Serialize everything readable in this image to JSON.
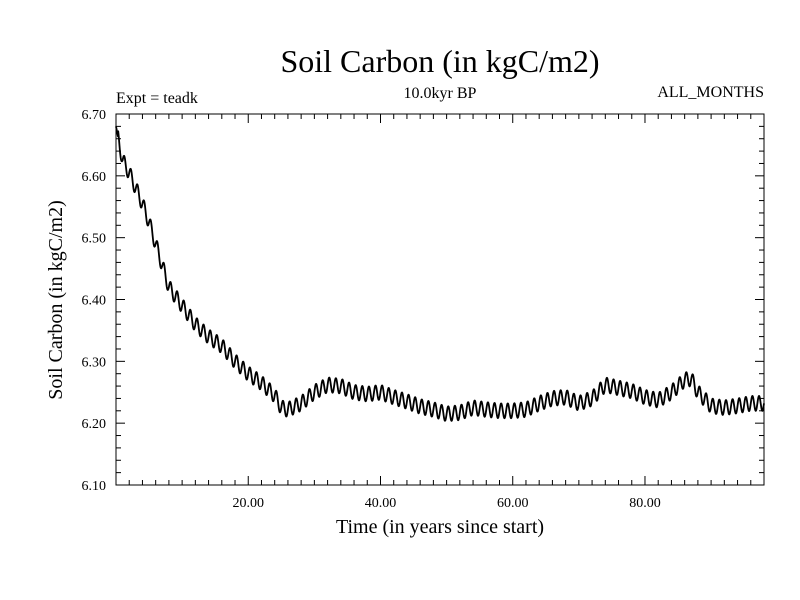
{
  "chart_data": {
    "type": "line",
    "title": "Soil Carbon (in kgC/m2)",
    "subtitle": "10.0kyr BP",
    "left_note": "Expt = teadk",
    "right_note": "ALL_MONTHS",
    "xlabel": "Time (in years since start)",
    "ylabel": "Soil Carbon (in kgC/m2)",
    "xlim": [
      0,
      98
    ],
    "ylim": [
      6.1,
      6.7
    ],
    "x_ticks": [
      20,
      40,
      60,
      80
    ],
    "x_tick_labels": [
      "20.00",
      "40.00",
      "60.00",
      "80.00"
    ],
    "y_ticks": [
      6.1,
      6.2,
      6.3,
      6.4,
      6.5,
      6.6,
      6.7
    ],
    "y_tick_labels": [
      "6.10",
      "6.20",
      "6.30",
      "6.40",
      "6.50",
      "6.60",
      "6.70"
    ],
    "x_minor_step": 2,
    "y_minor_step": 0.02,
    "grid": false,
    "seasonal_amplitude": 0.012,
    "series": [
      {
        "name": "Soil Carbon",
        "color": "#000000",
        "x": [
          0,
          1,
          2,
          3,
          4,
          5,
          6,
          7,
          8,
          10,
          12,
          14,
          16,
          18,
          20,
          22,
          24,
          25,
          26,
          28,
          30,
          32,
          34,
          36,
          38,
          40,
          42,
          44,
          46,
          48,
          50,
          52,
          54,
          56,
          58,
          60,
          62,
          64,
          66,
          68,
          70,
          72,
          74,
          76,
          78,
          80,
          82,
          84,
          86,
          87,
          88,
          90,
          92,
          94,
          96,
          98
        ],
        "y": [
          6.68,
          6.625,
          6.605,
          6.58,
          6.555,
          6.525,
          6.49,
          6.455,
          6.42,
          6.39,
          6.36,
          6.34,
          6.325,
          6.3,
          6.28,
          6.265,
          6.245,
          6.225,
          6.222,
          6.232,
          6.25,
          6.262,
          6.26,
          6.25,
          6.247,
          6.25,
          6.242,
          6.235,
          6.227,
          6.222,
          6.215,
          6.217,
          6.225,
          6.222,
          6.22,
          6.22,
          6.222,
          6.232,
          6.24,
          6.242,
          6.232,
          6.24,
          6.262,
          6.257,
          6.252,
          6.242,
          6.237,
          6.25,
          6.27,
          6.272,
          6.25,
          6.228,
          6.225,
          6.228,
          6.232,
          6.232
        ]
      }
    ]
  }
}
